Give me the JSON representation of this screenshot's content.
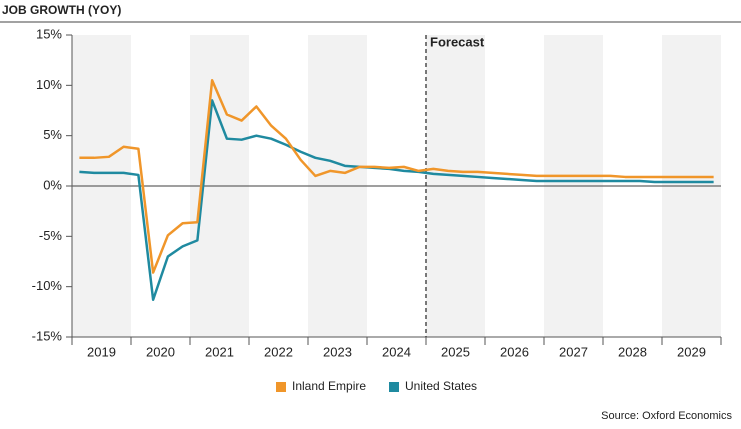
{
  "chart_data": {
    "type": "line",
    "title": "JOB GROWTH (YOY)",
    "source": "Source: Oxford Economics",
    "x": [
      2019.125,
      2019.375,
      2019.625,
      2019.875,
      2020.125,
      2020.375,
      2020.625,
      2020.875,
      2021.125,
      2021.375,
      2021.625,
      2021.875,
      2022.125,
      2022.375,
      2022.625,
      2022.875,
      2023.125,
      2023.375,
      2023.625,
      2023.875,
      2024.125,
      2024.375,
      2024.625,
      2024.875,
      2025.125,
      2025.375,
      2025.625,
      2025.875,
      2026.125,
      2026.375,
      2026.625,
      2026.875,
      2027.125,
      2027.375,
      2027.625,
      2027.875,
      2028.125,
      2028.375,
      2028.625,
      2028.875,
      2029.125,
      2029.375,
      2029.625,
      2029.875
    ],
    "series": [
      {
        "name": "Inland Empire",
        "color": "#f0962a",
        "values": [
          2.8,
          2.8,
          2.9,
          3.9,
          3.7,
          -8.6,
          -4.9,
          -3.7,
          -3.6,
          10.5,
          7.1,
          6.5,
          7.9,
          6.0,
          4.7,
          2.6,
          1.0,
          1.5,
          1.3,
          1.9,
          1.9,
          1.8,
          1.9,
          1.5,
          1.7,
          1.5,
          1.4,
          1.4,
          1.3,
          1.2,
          1.1,
          1.0,
          1.0,
          1.0,
          1.0,
          1.0,
          1.0,
          0.9,
          0.9,
          0.9,
          0.9,
          0.9,
          0.9,
          0.9
        ]
      },
      {
        "name": "United States",
        "color": "#1f8aa0",
        "values": [
          1.4,
          1.3,
          1.3,
          1.3,
          1.1,
          -11.3,
          -7.0,
          -6.0,
          -5.4,
          8.5,
          4.7,
          4.6,
          5.0,
          4.7,
          4.1,
          3.4,
          2.8,
          2.5,
          2.0,
          1.9,
          1.8,
          1.7,
          1.5,
          1.4,
          1.2,
          1.1,
          1.0,
          0.9,
          0.8,
          0.7,
          0.6,
          0.5,
          0.5,
          0.5,
          0.5,
          0.5,
          0.5,
          0.5,
          0.5,
          0.4,
          0.4,
          0.4,
          0.4,
          0.4
        ]
      }
    ],
    "xlim": [
      2019,
      2030
    ],
    "xticks": [
      {
        "value": 2019.5,
        "label": "2019"
      },
      {
        "value": 2020.5,
        "label": "2020"
      },
      {
        "value": 2021.5,
        "label": "2021"
      },
      {
        "value": 2022.5,
        "label": "2022"
      },
      {
        "value": 2023.5,
        "label": "2023"
      },
      {
        "value": 2024.5,
        "label": "2024"
      },
      {
        "value": 2025.5,
        "label": "2025"
      },
      {
        "value": 2026.5,
        "label": "2026"
      },
      {
        "value": 2027.5,
        "label": "2027"
      },
      {
        "value": 2028.5,
        "label": "2028"
      },
      {
        "value": 2029.5,
        "label": "2029"
      }
    ],
    "ylim": [
      -15,
      15
    ],
    "yticks": [
      {
        "value": -15,
        "label": "-15%"
      },
      {
        "value": -10,
        "label": "-10%"
      },
      {
        "value": -5,
        "label": "-5%"
      },
      {
        "value": 0,
        "label": "0%"
      },
      {
        "value": 5,
        "label": "5%"
      },
      {
        "value": 10,
        "label": "10%"
      },
      {
        "value": 15,
        "label": "15%"
      }
    ],
    "band_shading": true,
    "annotation": {
      "text": "Forecast",
      "x": 2025
    }
  }
}
